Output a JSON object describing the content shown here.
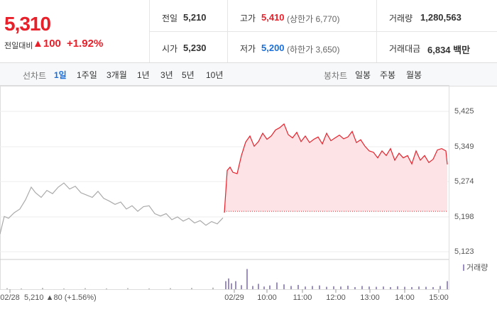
{
  "header": {
    "price": "5,310",
    "change_label": "전일대비",
    "change": "▲100",
    "change_rate": "+1.92%",
    "stats": [
      {
        "label": "전일",
        "value": "5,210"
      },
      {
        "label": "고가",
        "value": "5,410",
        "note": "(상한가 6,770)"
      },
      {
        "label": "거래량",
        "value": "1,280,563"
      },
      {
        "label": "시가",
        "value": "5,230"
      },
      {
        "label": "저가",
        "value": "5,200",
        "note": "(하한가 3,650)"
      },
      {
        "label": "거래대금",
        "value": "6,834 백만"
      }
    ]
  },
  "tabs": {
    "line_label": "선차트",
    "line": [
      "1일",
      "1주일",
      "3개월",
      "1년",
      "3년",
      "5년",
      "10년"
    ],
    "candle_label": "봉차트",
    "candle": [
      "일봉",
      "주봉",
      "월봉"
    ]
  },
  "footer": {
    "prev_info": "5,210 ▲80 (+1.56%)",
    "volume_legend": "거래량"
  },
  "chart_data": {
    "type": "line",
    "xlim": [
      0,
      632
    ],
    "ylim": [
      5108,
      5474
    ],
    "y2lim": [
      0,
      100
    ],
    "yticks": [
      {
        "value": 5425,
        "label": "5,425"
      },
      {
        "value": 5349,
        "label": "5,349"
      },
      {
        "value": 5274,
        "label": "5,274"
      },
      {
        "value": 5198,
        "label": "5,198"
      },
      {
        "value": 5123,
        "label": "5,123"
      }
    ],
    "xticks": [
      {
        "value": 14,
        "label": "02/28"
      },
      {
        "value": 330,
        "label": "02/29"
      },
      {
        "value": 376,
        "label": "10:00"
      },
      {
        "value": 426,
        "label": "11:00"
      },
      {
        "value": 473,
        "label": "12:00"
      },
      {
        "value": 521,
        "label": "13:00"
      },
      {
        "value": 570,
        "label": "14:00"
      },
      {
        "value": 618,
        "label": "15:00"
      }
    ],
    "grid": true,
    "reference_line": 5210,
    "series": [
      {
        "color": "#aaaaaa",
        "x": [
          0,
          6,
          12,
          20,
          28,
          36,
          44,
          50,
          58,
          66,
          74,
          82,
          90,
          98,
          106,
          114,
          122,
          130,
          138,
          146,
          154,
          162,
          170,
          178,
          186,
          194,
          202,
          210,
          218,
          226,
          234,
          242,
          250,
          258,
          266,
          274,
          282,
          290,
          298,
          306,
          314
        ],
        "values": [
          5161,
          5199,
          5195,
          5207,
          5215,
          5235,
          5262,
          5250,
          5240,
          5255,
          5248,
          5262,
          5271,
          5258,
          5264,
          5250,
          5245,
          5240,
          5253,
          5238,
          5232,
          5225,
          5230,
          5215,
          5222,
          5210,
          5220,
          5222,
          5205,
          5200,
          5205,
          5192,
          5198,
          5189,
          5195,
          5185,
          5190,
          5180,
          5188,
          5183,
          5196
        ]
      },
      {
        "color": "#e8202a",
        "fill": "#fde3e5",
        "x": [
          316,
          320,
          324,
          328,
          334,
          340,
          346,
          352,
          358,
          364,
          370,
          376,
          382,
          388,
          394,
          400,
          406,
          412,
          418,
          424,
          430,
          436,
          442,
          448,
          454,
          460,
          466,
          472,
          478,
          484,
          490,
          496,
          502,
          508,
          514,
          520,
          526,
          532,
          538,
          544,
          550,
          556,
          562,
          568,
          574,
          580,
          586,
          592,
          598,
          604,
          610,
          616,
          622,
          628,
          630
        ],
        "values": [
          5207,
          5298,
          5305,
          5294,
          5291,
          5330,
          5359,
          5372,
          5350,
          5360,
          5378,
          5365,
          5372,
          5385,
          5390,
          5398,
          5375,
          5368,
          5380,
          5360,
          5372,
          5358,
          5365,
          5370,
          5355,
          5378,
          5362,
          5368,
          5374,
          5366,
          5370,
          5382,
          5358,
          5364,
          5350,
          5340,
          5337,
          5325,
          5340,
          5330,
          5345,
          5320,
          5335,
          5325,
          5330,
          5312,
          5340,
          5320,
          5330,
          5315,
          5322,
          5342,
          5345,
          5340,
          5311
        ]
      },
      {
        "type": "bar",
        "axis": "y2",
        "color": "#bbbbbb",
        "x": [
          10,
          30,
          60,
          90,
          120,
          150,
          180,
          210,
          240,
          270,
          300
        ],
        "values": [
          4,
          3,
          5,
          3,
          4,
          3,
          4,
          3,
          4,
          5,
          6
        ]
      },
      {
        "type": "bar",
        "axis": "y2",
        "color": "#9b8ec4",
        "x": [
          318,
          322,
          326,
          332,
          340,
          348,
          356,
          364,
          372,
          380,
          390,
          400,
          410,
          420,
          430,
          440,
          450,
          460,
          470,
          480,
          490,
          500,
          510,
          520,
          530,
          540,
          550,
          560,
          570,
          580,
          590,
          600,
          610,
          620,
          630
        ],
        "values": [
          30,
          40,
          22,
          30,
          15,
          75,
          12,
          20,
          10,
          14,
          25,
          18,
          12,
          16,
          10,
          12,
          14,
          9,
          11,
          10,
          13,
          8,
          12,
          10,
          9,
          10,
          8,
          11,
          9,
          8,
          10,
          9,
          8,
          12,
          30
        ]
      }
    ]
  }
}
